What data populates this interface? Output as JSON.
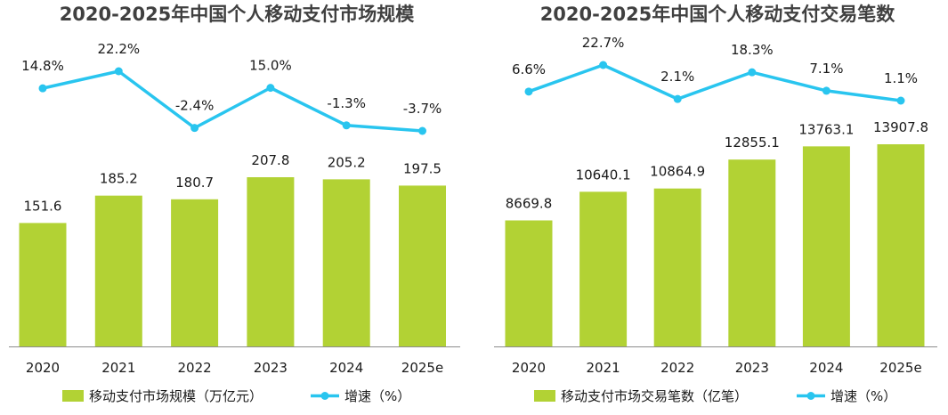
{
  "colors": {
    "bar": "#b2d234",
    "line": "#29c5ef",
    "axis": "#8c8c8c",
    "title": "#404040"
  },
  "chart_data": [
    {
      "type": "bar",
      "title": "2020-2025年中国个人移动支付市场规模",
      "categories": [
        "2020",
        "2021",
        "2022",
        "2023",
        "2024",
        "2025e"
      ],
      "series": [
        {
          "name": "移动支付市场规模（万亿元）",
          "type": "bar",
          "values": [
            151.6,
            185.2,
            180.7,
            207.8,
            205.2,
            197.5
          ],
          "labels": [
            "151.6",
            "185.2",
            "180.7",
            "207.8",
            "205.2",
            "197.5"
          ]
        },
        {
          "name": "增速（%）",
          "type": "line",
          "values": [
            14.8,
            22.2,
            -2.4,
            15.0,
            -1.3,
            -3.7
          ],
          "labels": [
            "14.8%",
            "22.2%",
            "-2.4%",
            "15.0%",
            "-1.3%",
            "-3.7%"
          ]
        }
      ]
    },
    {
      "type": "bar",
      "title": "2020-2025年中国个人移动支付交易笔数",
      "categories": [
        "2020",
        "2021",
        "2022",
        "2023",
        "2024",
        "2025e"
      ],
      "series": [
        {
          "name": "移动支付市场交易笔数（亿笔）",
          "type": "bar",
          "values": [
            8669.8,
            10640.1,
            10864.9,
            12855.1,
            13763.1,
            13907.8
          ],
          "labels": [
            "8669.8",
            "10640.1",
            "10864.9",
            "12855.1",
            "13763.1",
            "13907.8"
          ]
        },
        {
          "name": "增速（%）",
          "type": "line",
          "values": [
            6.6,
            22.7,
            2.1,
            18.3,
            7.1,
            1.1
          ],
          "labels": [
            "6.6%",
            "22.7%",
            "2.1%",
            "18.3%",
            "7.1%",
            "1.1%"
          ]
        }
      ]
    }
  ]
}
